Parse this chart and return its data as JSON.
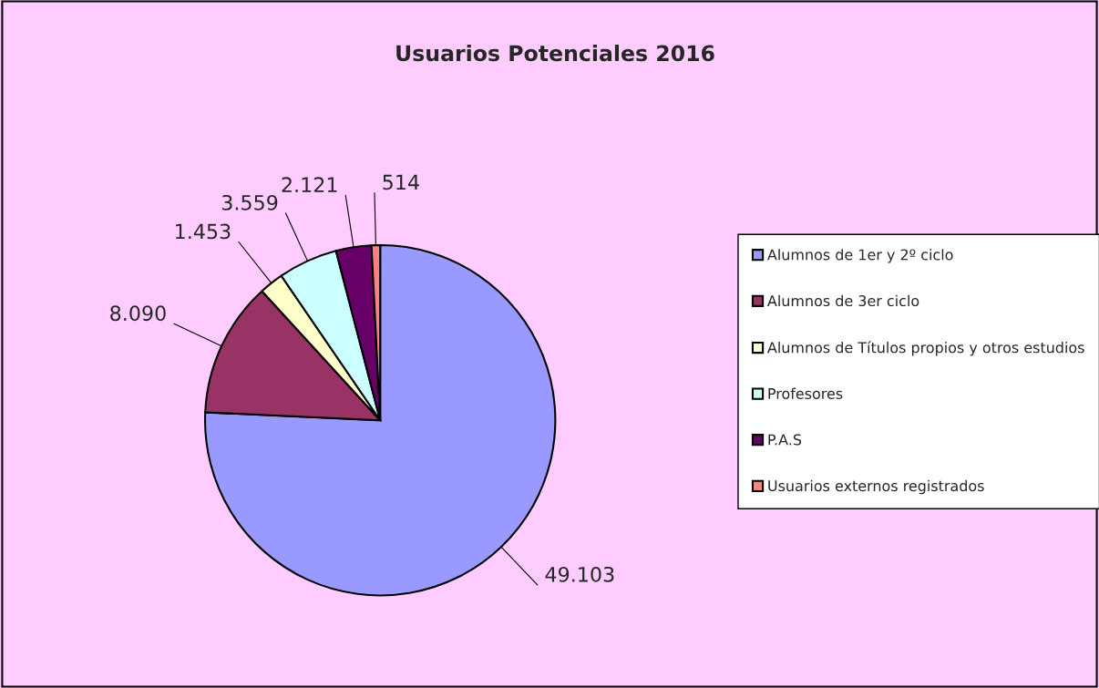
{
  "chart_data": {
    "type": "pie",
    "title": "Usuarios Potenciales 2016",
    "categories": [
      "Alumnos de 1er y 2º ciclo",
      "Alumnos de 3er ciclo",
      "Alumnos de Títulos propios y otros estudios",
      "Profesores",
      "P.A.S",
      "Usuarios externos registrados"
    ],
    "values": [
      49103,
      8090,
      1453,
      3559,
      2121,
      514
    ],
    "value_labels": [
      "49.103",
      "8.090",
      "1.453",
      "3.559",
      "2.121",
      "514"
    ],
    "colors": [
      "#9999ff",
      "#993366",
      "#ffffcc",
      "#ccffff",
      "#660066",
      "#ff8080"
    ],
    "legend": "right"
  }
}
